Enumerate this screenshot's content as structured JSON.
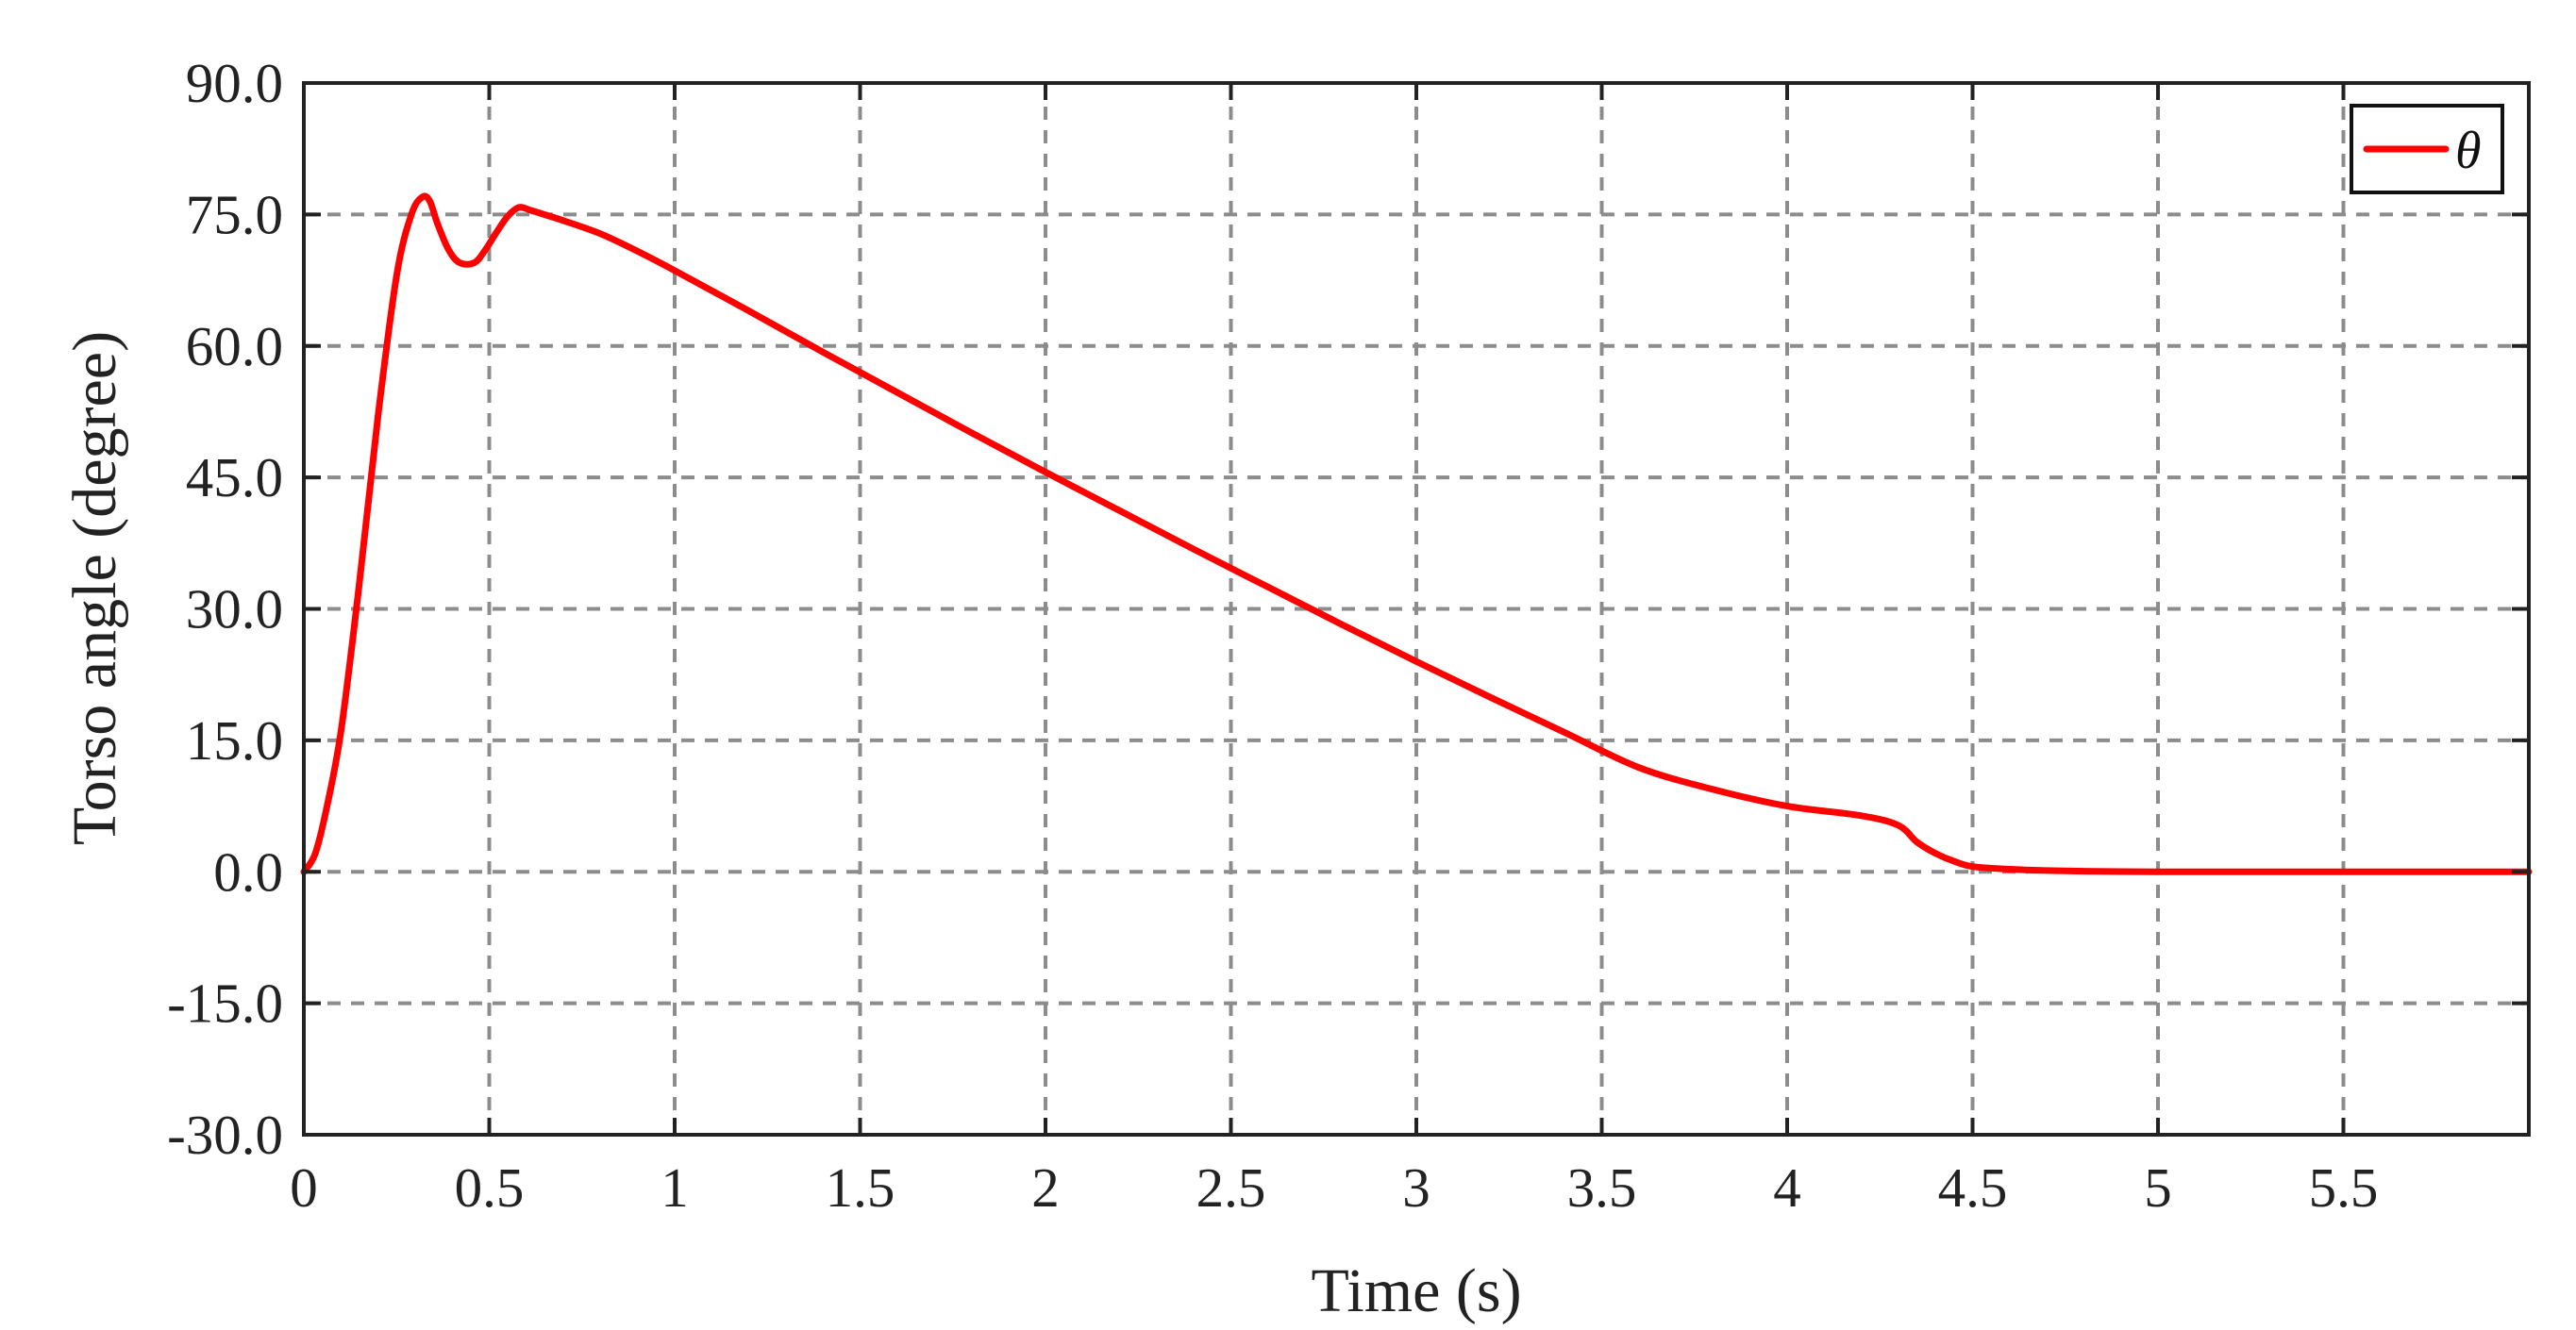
{
  "chart_data": {
    "type": "line",
    "title": "",
    "xlabel": "Time (s)",
    "ylabel": "Torso angle (degree)",
    "xlim": [
      0,
      6
    ],
    "ylim": [
      -30,
      90
    ],
    "xticks": [
      0,
      0.5,
      1,
      1.5,
      2,
      2.5,
      3,
      3.5,
      4,
      4.5,
      5,
      5.5
    ],
    "xtick_labels": [
      "0",
      "0.5",
      "1",
      "1.5",
      "2",
      "2.5",
      "3",
      "3.5",
      "4",
      "4.5",
      "5",
      "5.5"
    ],
    "yticks": [
      -30,
      -15,
      0,
      15,
      30,
      45,
      60,
      75,
      90
    ],
    "ytick_labels": [
      "-30.0",
      "-15.0",
      "0.0",
      "15.0",
      "30.0",
      "45.0",
      "60.0",
      "75.0",
      "90.0"
    ],
    "grid": true,
    "grid_style": "dashed",
    "legend_position": "top-right",
    "series": [
      {
        "name": "θ",
        "color": "#ff0000",
        "x": [
          0,
          0.03,
          0.06,
          0.1,
          0.15,
          0.2,
          0.25,
          0.29,
          0.32,
          0.34,
          0.36,
          0.39,
          0.42,
          0.46,
          0.49,
          0.52,
          0.55,
          0.58,
          0.61,
          0.64,
          0.7,
          0.8,
          0.9,
          1.0,
          1.2,
          1.4,
          1.6,
          1.8,
          2.0,
          2.2,
          2.4,
          2.6,
          2.8,
          3.0,
          3.2,
          3.4,
          3.6,
          3.8,
          4.0,
          4.2,
          4.3,
          4.35,
          4.4,
          4.45,
          4.5,
          4.6,
          4.7,
          4.8,
          4.9,
          5.0,
          5.1,
          5.2,
          5.3,
          5.4,
          5.5,
          5.6,
          5.7,
          5.8,
          5.9,
          6.0
        ],
        "y": [
          0,
          2,
          7,
          16,
          33,
          52,
          68,
          75,
          77,
          76.5,
          74,
          71,
          69.5,
          69.5,
          71,
          73,
          74.8,
          75.8,
          75.5,
          75.1,
          74.3,
          72.8,
          70.8,
          68.6,
          64,
          59.3,
          54.7,
          50.1,
          45.6,
          41.2,
          36.8,
          32.5,
          28.2,
          24,
          19.9,
          15.9,
          11.9,
          9.4,
          7.5,
          6.4,
          5.3,
          3.4,
          2.1,
          1.2,
          0.6,
          0.3,
          0.15,
          0.07,
          0.03,
          0.01,
          0,
          0,
          0,
          0,
          0,
          0,
          0,
          0,
          0,
          0
        ]
      }
    ]
  }
}
